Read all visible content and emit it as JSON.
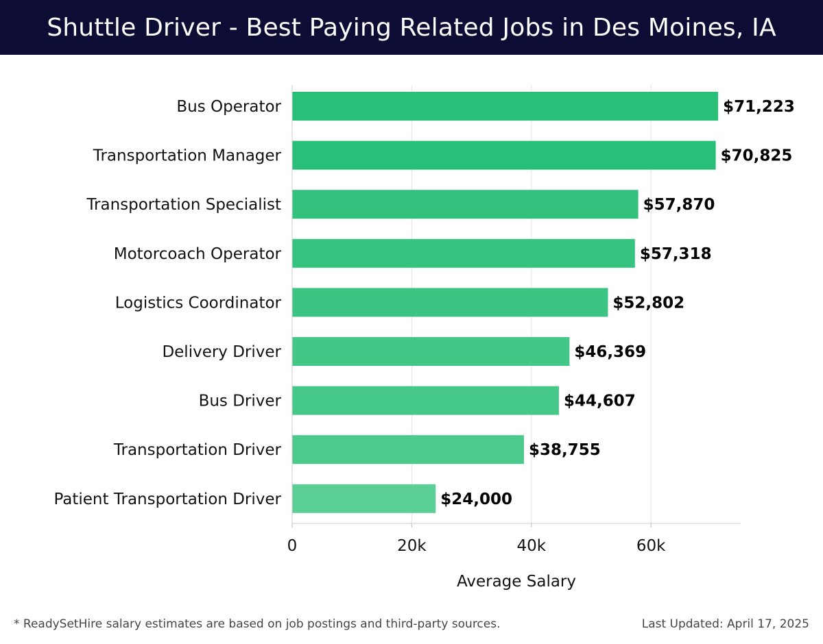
{
  "header": {
    "title": "Shuttle Driver - Best Paying Related Jobs in Des Moines, IA",
    "background": "#0c0c35"
  },
  "chart_data": {
    "type": "bar",
    "orientation": "horizontal",
    "title": "Shuttle Driver - Best Paying Related Jobs in Des Moines, IA",
    "categories": [
      "Bus Operator",
      "Transportation Manager",
      "Transportation Specialist",
      "Motorcoach Operator",
      "Logistics Coordinator",
      "Delivery Driver",
      "Bus Driver",
      "Transportation Driver",
      "Patient Transportation Driver"
    ],
    "values": [
      71223,
      70825,
      57870,
      57318,
      52802,
      46369,
      44607,
      38755,
      24000
    ],
    "value_labels": [
      "$71,223",
      "$70,825",
      "$57,870",
      "$57,318",
      "$52,802",
      "$46,369",
      "$44,607",
      "$38,755",
      "$24,000"
    ],
    "bar_colors": [
      "#29bf78",
      "#29bf78",
      "#33c27d",
      "#36c37f",
      "#3cc582",
      "#43c787",
      "#46c889",
      "#4cca8d",
      "#5ccf96"
    ],
    "xlabel": "Average Salary",
    "ylabel": "",
    "xlim": [
      0,
      75000
    ],
    "xticks": [
      0,
      20000,
      40000,
      60000
    ],
    "xtick_labels": [
      "0",
      "20k",
      "40k",
      "60k"
    ],
    "grid": "vertical",
    "legend": "none"
  },
  "footer": {
    "note": "* ReadySetHire salary estimates are based on job postings and third-party sources.",
    "updated": "Last Updated: April 17, 2025"
  }
}
